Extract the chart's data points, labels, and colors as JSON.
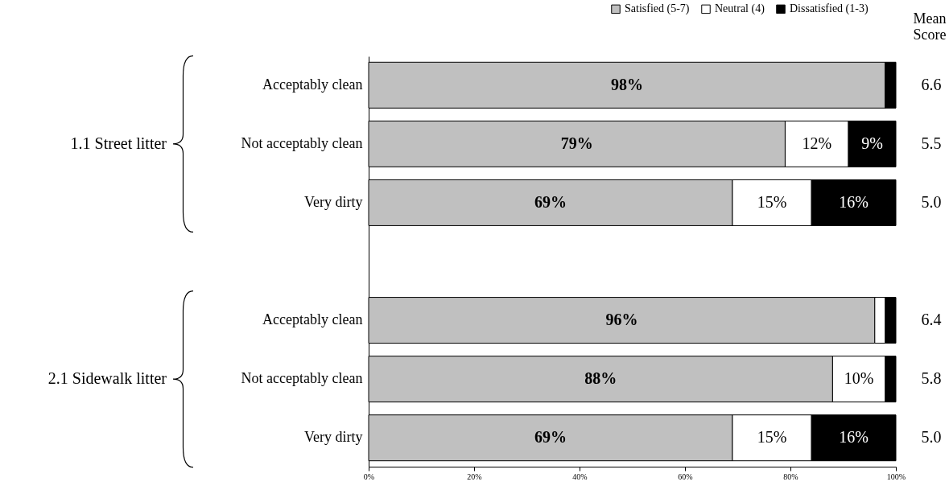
{
  "chart_data": {
    "type": "bar",
    "orientation": "horizontal",
    "stacked": true,
    "legend": "top right",
    "grid": false,
    "categories": [
      "Acceptably clean",
      "Not acceptably clean",
      "Very dirty",
      null,
      "Acceptably clean",
      "Not acceptably clean",
      "Very dirty"
    ],
    "series": [
      {
        "name": "Satisfied (5-7)",
        "color": "#c0c0c0",
        "values": [
          98,
          79,
          69,
          null,
          96,
          88,
          69
        ],
        "value_labels": [
          "98%",
          "79%",
          "69%",
          null,
          "96%",
          "88%",
          "69%"
        ]
      },
      {
        "name": "Neutral (4)",
        "color": "#ffffff",
        "values": [
          0,
          12,
          15,
          null,
          2,
          10,
          15
        ],
        "value_labels": [
          null,
          "12%",
          "15%",
          null,
          null,
          "10%",
          "15%"
        ]
      },
      {
        "name": "Dissatisfied (1-3)",
        "color": "#000000",
        "values": [
          2,
          9,
          16,
          null,
          2,
          2,
          16
        ],
        "value_labels": [
          null,
          "9%",
          "16%",
          null,
          null,
          null,
          "16%"
        ]
      }
    ],
    "xlim": [
      0,
      100
    ],
    "xticks": [
      {
        "value": 0,
        "label": "0%"
      },
      {
        "value": 20,
        "label": "20%"
      },
      {
        "value": 40,
        "label": "40%"
      },
      {
        "value": 60,
        "label": "60%"
      },
      {
        "value": 80,
        "label": "80%"
      },
      {
        "value": 100,
        "label": "100%"
      }
    ],
    "annotations": [
      "Mean Score",
      "6.6",
      "5.5",
      "5.0",
      "6.4",
      "5.8",
      "5.0",
      "1.1  Street litter",
      "2.1 Sidewalk litter"
    ]
  }
}
